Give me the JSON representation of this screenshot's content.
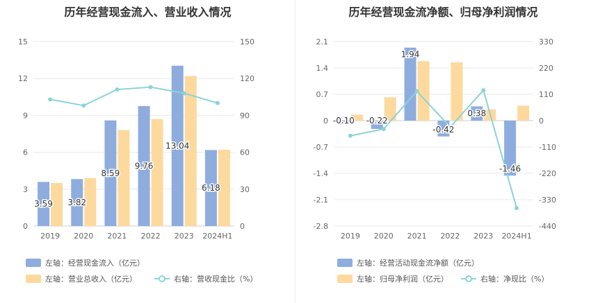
{
  "charts": [
    {
      "title": "历年经营现金流入、营业收入情况",
      "legend": [
        {
          "label": "左轴：经营现金流入（亿元）",
          "color": "#8eadde",
          "kind": "bar"
        },
        {
          "label": "左轴：营业总收入（亿元）",
          "color": "#fdd99e",
          "kind": "bar"
        },
        {
          "label": "右轴：营收现金比（%）",
          "color": "#8ad4d8",
          "kind": "line"
        }
      ]
    },
    {
      "title": "历年经营现金流净额、归母净利润情况",
      "legend": [
        {
          "label": "左轴：经营活动现金流净额（亿元）",
          "color": "#8eadde",
          "kind": "bar"
        },
        {
          "label": "左轴：归母净利润（亿元）",
          "color": "#fdd99e",
          "kind": "bar"
        },
        {
          "label": "右轴：净现比（%）",
          "color": "#8ad4d8",
          "kind": "line"
        }
      ]
    }
  ],
  "chart_data": [
    {
      "type": "bar",
      "title": "历年经营现金流入、营业收入情况",
      "categories": [
        "2019",
        "2020",
        "2021",
        "2022",
        "2023",
        "2024H1"
      ],
      "left_axis": {
        "ticks": [
          0,
          3,
          6,
          9,
          12,
          15
        ],
        "range": [
          0,
          15
        ]
      },
      "right_axis": {
        "ticks": [
          0,
          30,
          60,
          90,
          120,
          150
        ],
        "range": [
          0,
          150
        ]
      },
      "series": [
        {
          "name": "经营现金流入（亿元）",
          "axis": "left",
          "type": "bar",
          "values": [
            3.59,
            3.82,
            8.59,
            9.76,
            13.04,
            6.18
          ],
          "labels": [
            "3.59",
            "3.82",
            "8.59",
            "9.76",
            "13.04",
            "6.18"
          ]
        },
        {
          "name": "营业总收入（亿元）",
          "axis": "left",
          "type": "bar",
          "values": [
            3.5,
            3.9,
            7.8,
            8.7,
            12.2,
            6.2
          ]
        },
        {
          "name": "营收现金比（%）",
          "axis": "right",
          "type": "line",
          "values": [
            103,
            98,
            111,
            113,
            108,
            100
          ]
        }
      ]
    },
    {
      "type": "bar",
      "title": "历年经营现金流净额、归母净利润情况",
      "categories": [
        "2019",
        "2020",
        "2021",
        "2022",
        "2023",
        "2024H1"
      ],
      "left_axis": {
        "ticks": [
          -2.8,
          -2.1,
          -1.4,
          -0.7,
          0,
          0.7,
          1.4,
          2.1
        ],
        "labels": [
          "-2.8",
          "-2.1",
          "-1.4",
          "-0.7",
          "0",
          "0.7",
          "1.4",
          "2.1"
        ],
        "range": [
          -2.8,
          2.1
        ]
      },
      "right_axis": {
        "ticks": [
          -440,
          -330,
          -220,
          -110,
          0,
          110,
          220,
          330
        ],
        "range": [
          -440,
          330
        ]
      },
      "series": [
        {
          "name": "经营活动现金流净额（亿元）",
          "axis": "left",
          "type": "bar",
          "values": [
            -0.1,
            -0.22,
            1.94,
            -0.42,
            0.38,
            -1.46
          ],
          "labels": [
            "-0.10",
            "-0.22",
            "1.94",
            "-0.42",
            "0.38",
            "-1.46"
          ]
        },
        {
          "name": "归母净利润（亿元）",
          "axis": "left",
          "type": "bar",
          "values": [
            0.16,
            0.62,
            1.58,
            1.55,
            0.3,
            0.4
          ]
        },
        {
          "name": "净现比（%）",
          "axis": "right",
          "type": "line",
          "values": [
            -63,
            -35,
            123,
            -27,
            127,
            -365
          ]
        }
      ]
    }
  ]
}
